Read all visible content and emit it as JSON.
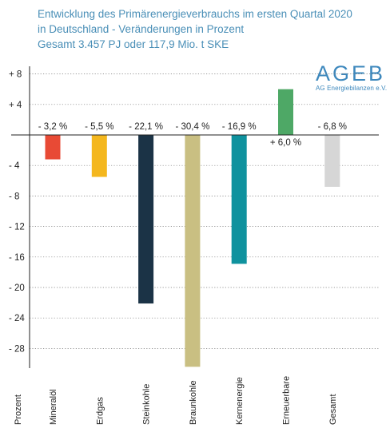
{
  "header": {
    "title_line1": "Entwicklung des Primärenergieverbrauchs im ersten Quartal 2020",
    "title_line2": "in Deutschland - Veränderungen in Prozent",
    "title_line3": "Gesamt 3.457 PJ oder 117,9 Mio. t SKE"
  },
  "logo": {
    "main": "AGEB",
    "sub": "AG Energiebilanzen e.V."
  },
  "chart_data": {
    "type": "bar",
    "ylabel": "Prozent",
    "ylim": [
      -30,
      9
    ],
    "grid": "horizontal-dotted",
    "yticks": [
      8,
      4,
      -4,
      -8,
      -12,
      -16,
      -20,
      -24,
      -28
    ],
    "ytick_labels": [
      "+ 8",
      "+ 4",
      "- 4",
      "- 8",
      "- 12",
      "- 16",
      "- 20",
      "- 24",
      "- 28"
    ],
    "categories": [
      "Mineralöl",
      "Erdgas",
      "Steinkohle",
      "Braunkohle",
      "Kernenergie",
      "Erneuerbare",
      "Gesamt"
    ],
    "values": [
      -3.2,
      -5.5,
      -22.1,
      -30.4,
      -16.9,
      6.0,
      -6.8
    ],
    "data_labels": [
      "- 3,2 %",
      "- 5,5 %",
      "- 22,1 %",
      "- 30,4 %",
      "- 16,9 %",
      "+ 6,0 %",
      "- 6,8 %"
    ],
    "colors": [
      "#e84a35",
      "#f4b71e",
      "#1b3346",
      "#c9bf82",
      "#0f929e",
      "#4ea866",
      "#d6d6d6"
    ]
  }
}
